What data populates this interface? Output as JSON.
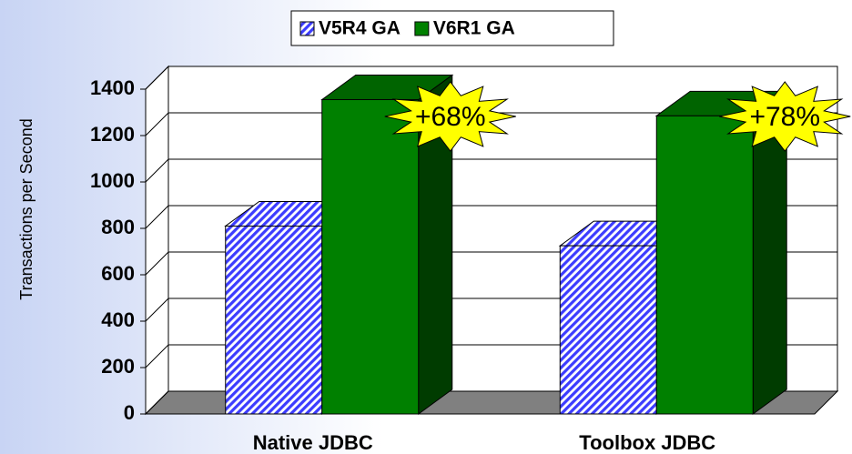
{
  "chart_data": {
    "type": "bar",
    "y_label": "Transactions per Second",
    "categories": [
      "Native JDBC",
      "Toolbox JDBC"
    ],
    "series": [
      {
        "name": "V5R4 GA",
        "color": "#3c3cff",
        "values": [
          810,
          725
        ]
      },
      {
        "name": "V6R1 GA",
        "color": "#008000",
        "values": [
          1355,
          1285
        ]
      }
    ],
    "annotations": [
      "+68%",
      "+78%"
    ],
    "ylim": [
      0,
      1400
    ],
    "yticks": [
      0,
      200,
      400,
      600,
      800,
      1000,
      1200,
      1400
    ],
    "grid": true,
    "legend": "top"
  }
}
